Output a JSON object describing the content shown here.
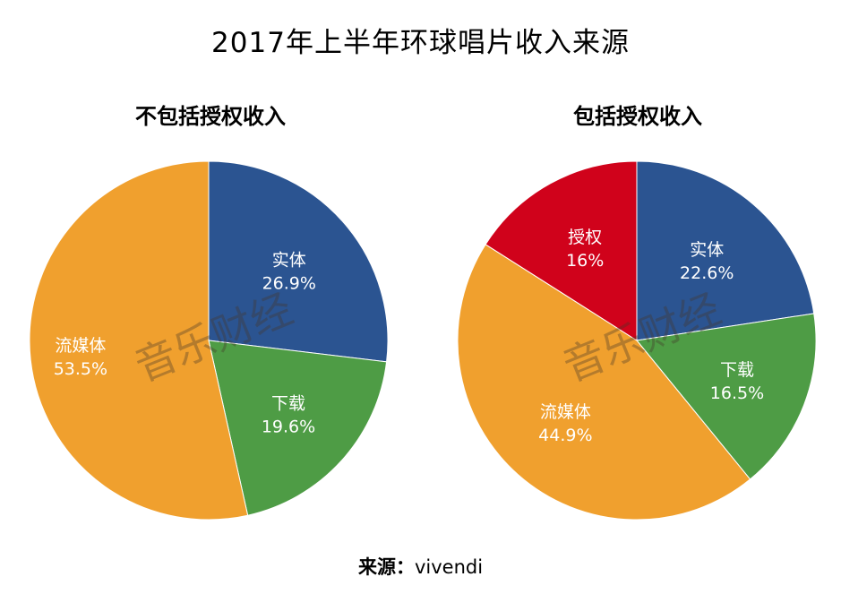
{
  "title": "2017年上半年环球唱片收入来源",
  "source": {
    "label": "来源：",
    "value": "vivendi"
  },
  "watermark": "音乐财经",
  "colors": {
    "实体": "#2b5491",
    "下载": "#4e9c45",
    "流媒体": "#f0a02e",
    "授权": "#d0021b"
  },
  "chart_data": [
    {
      "type": "pie",
      "title": "不包括授权收入",
      "slices": [
        {
          "label": "实体",
          "value": 26.9,
          "display": "26.9%"
        },
        {
          "label": "下载",
          "value": 19.6,
          "display": "19.6%"
        },
        {
          "label": "流媒体",
          "value": 53.5,
          "display": "53.5%"
        }
      ]
    },
    {
      "type": "pie",
      "title": "包括授权收入",
      "slices": [
        {
          "label": "实体",
          "value": 22.6,
          "display": "22.6%"
        },
        {
          "label": "下载",
          "value": 16.5,
          "display": "16.5%"
        },
        {
          "label": "流媒体",
          "value": 44.9,
          "display": "44.9%"
        },
        {
          "label": "授权",
          "value": 16,
          "display": "16%"
        }
      ]
    }
  ]
}
